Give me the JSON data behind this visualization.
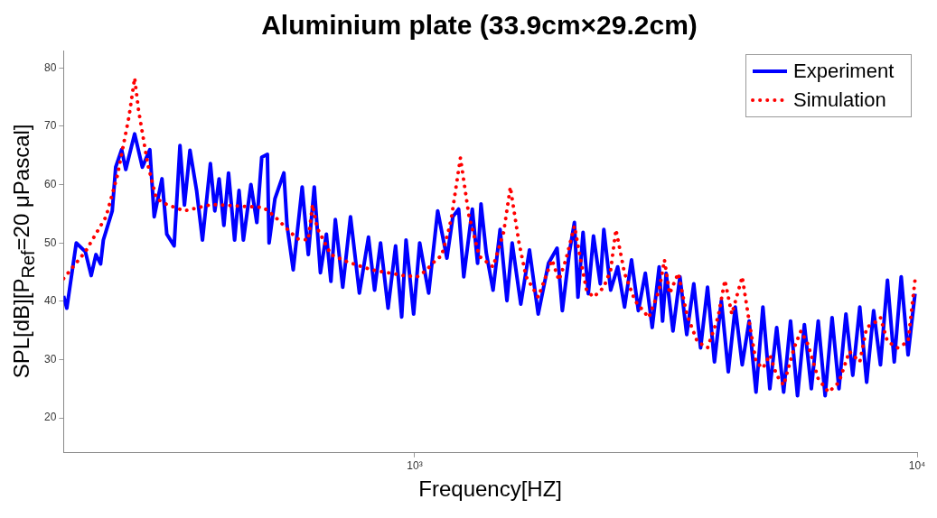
{
  "chart_data": {
    "type": "line",
    "title": "Aluminium plate (33.9cm×29.2cm)",
    "xlabel": "Frequency[HZ]",
    "ylabel": "SPL[dB][P$_{Ref}$=20 μPascal]",
    "log": "x",
    "xlim": [
      200,
      10000
    ],
    "xticks": [
      {
        "value": 1000,
        "label": "10³"
      },
      {
        "value": 10000,
        "label": "10⁴"
      }
    ],
    "ylim": [
      14,
      83
    ],
    "yticks": [
      20,
      30,
      40,
      50,
      60,
      70,
      80
    ],
    "grid": false,
    "legend": "top right",
    "marker": "none",
    "series": [
      {
        "name": "Experiment",
        "color": "#0000ff",
        "line_style": "solid",
        "x": [
          200,
          203,
          212,
          221,
          227,
          232,
          237,
          240,
          250,
          254,
          261,
          266,
          277,
          287,
          297,
          303,
          314,
          321,
          332,
          341,
          348,
          357,
          368,
          378,
          392,
          400,
          408,
          417,
          426,
          438,
          447,
          456,
          472,
          485,
          496,
          509,
          513,
          527,
          549,
          557,
          573,
          597,
          614,
          631,
          649,
          667,
          681,
          695,
          719,
          745,
          776,
          809,
          832,
          855,
          885,
          916,
          942,
          961,
          995,
          1023,
          1066,
          1111,
          1159,
          1191,
          1223,
          1252,
          1302,
          1334,
          1355,
          1388,
          1432,
          1479,
          1526,
          1563,
          1626,
          1692,
          1761,
          1846,
          1920,
          1967,
          2031,
          2079,
          2113,
          2163,
          2216,
          2269,
          2341,
          2379,
          2455,
          2535,
          2616,
          2701,
          2787,
          2877,
          2970,
          3066,
          3114,
          3165,
          3266,
          3372,
          3479,
          3593,
          3707,
          3827,
          3950,
          4077,
          4209,
          4345,
          4486,
          4630,
          4779,
          4932,
          5091,
          5254,
          5424,
          5598,
          5780,
          5965,
          6158,
          6356,
          6560,
          6772,
          6989,
          7216,
          7446,
          7689,
          7935,
          8193,
          8453,
          8729,
          9005,
          9297,
          9594,
          9903
        ],
        "values": [
          40.9,
          38.8,
          50,
          48.5,
          44.4,
          48,
          46.4,
          50.5,
          55.5,
          63,
          66,
          62.6,
          68.7,
          63,
          66,
          54.5,
          61,
          51.5,
          49.5,
          66.7,
          56.5,
          65.9,
          59,
          50.5,
          63.6,
          55.5,
          61,
          53,
          62,
          50.5,
          59,
          50.5,
          60,
          53.5,
          64.7,
          65.2,
          50,
          57.6,
          62,
          53,
          45.4,
          59.6,
          48,
          59.6,
          44.9,
          51.5,
          43.4,
          54,
          42.4,
          54.5,
          41.4,
          51,
          41.9,
          50,
          38.8,
          49.5,
          37.3,
          50.5,
          37.8,
          50,
          41.4,
          55.5,
          47.4,
          54.5,
          55.8,
          44.2,
          55.8,
          46.5,
          56.7,
          48.3,
          41.9,
          52.3,
          40.1,
          50,
          39.5,
          48.8,
          37.8,
          46.5,
          49.1,
          38.4,
          48.3,
          53.5,
          40.7,
          51.8,
          41.3,
          51.2,
          43,
          52.3,
          41.9,
          45.9,
          39,
          47.1,
          38.4,
          44.8,
          35.5,
          45.9,
          36.6,
          44.8,
          34.9,
          44.2,
          34.3,
          43,
          32,
          42.4,
          29.6,
          40.1,
          27.9,
          39,
          29.1,
          36.6,
          24.4,
          39,
          25,
          35.5,
          24.4,
          36.6,
          23.8,
          36,
          25,
          36.6,
          23.8,
          37.2,
          25,
          37.8,
          27.3,
          39,
          26.1,
          38.4,
          29.1,
          43.6,
          29.6,
          44.2,
          30.8,
          41.3
        ]
      },
      {
        "name": "Simulation",
        "color": "#ff0000",
        "line_style": "dotted",
        "x": [
          200,
          221,
          243,
          256,
          270,
          277,
          282,
          294,
          306,
          321,
          348,
          395,
          453,
          500,
          527,
          563,
          585,
          614,
          626,
          640,
          681,
          737,
          820,
          951,
          1011,
          1051,
          1111,
          1130,
          1171,
          1185,
          1233,
          1282,
          1345,
          1432,
          1503,
          1550,
          1613,
          1666,
          1761,
          1876,
          1937,
          1999,
          2079,
          2146,
          2198,
          2269,
          2379,
          2455,
          2515,
          2616,
          2744,
          2923,
          3066,
          3141,
          3216,
          3346,
          3479,
          3650,
          3827,
          4014,
          4144,
          4277,
          4486,
          4630,
          4779,
          4932,
          5091,
          5254,
          5424,
          5689,
          5872,
          6062,
          6356,
          6664,
          6989,
          7330,
          7689,
          7935,
          8320,
          8453,
          8729,
          9151,
          9594,
          9903
        ],
        "values": [
          43.9,
          48.5,
          54.5,
          61.6,
          71.7,
          78.3,
          72.8,
          63.6,
          57.6,
          56.6,
          55.5,
          56.6,
          56.3,
          56.1,
          54.5,
          52,
          50.7,
          50.5,
          56.6,
          52.5,
          48,
          46.7,
          45.4,
          44.4,
          44.2,
          45.2,
          47.4,
          47.7,
          52.5,
          54.7,
          64.6,
          54.7,
          47.7,
          45.9,
          51.8,
          59.6,
          50,
          44.2,
          40.7,
          47.1,
          43.6,
          47.1,
          52.9,
          46.5,
          41.9,
          40.7,
          42.4,
          45.4,
          52.3,
          44.8,
          40.1,
          37.2,
          41.9,
          47.1,
          41.3,
          44.8,
          37.8,
          33.1,
          32,
          37.2,
          43.6,
          37.8,
          44.2,
          36.6,
          29.6,
          28.5,
          30.8,
          27.3,
          25.6,
          32,
          34.9,
          32.6,
          26.7,
          24.4,
          26.1,
          31.4,
          29.6,
          35.5,
          36.6,
          37.2,
          33.1,
          32,
          33.1,
          43.6
        ]
      }
    ]
  }
}
